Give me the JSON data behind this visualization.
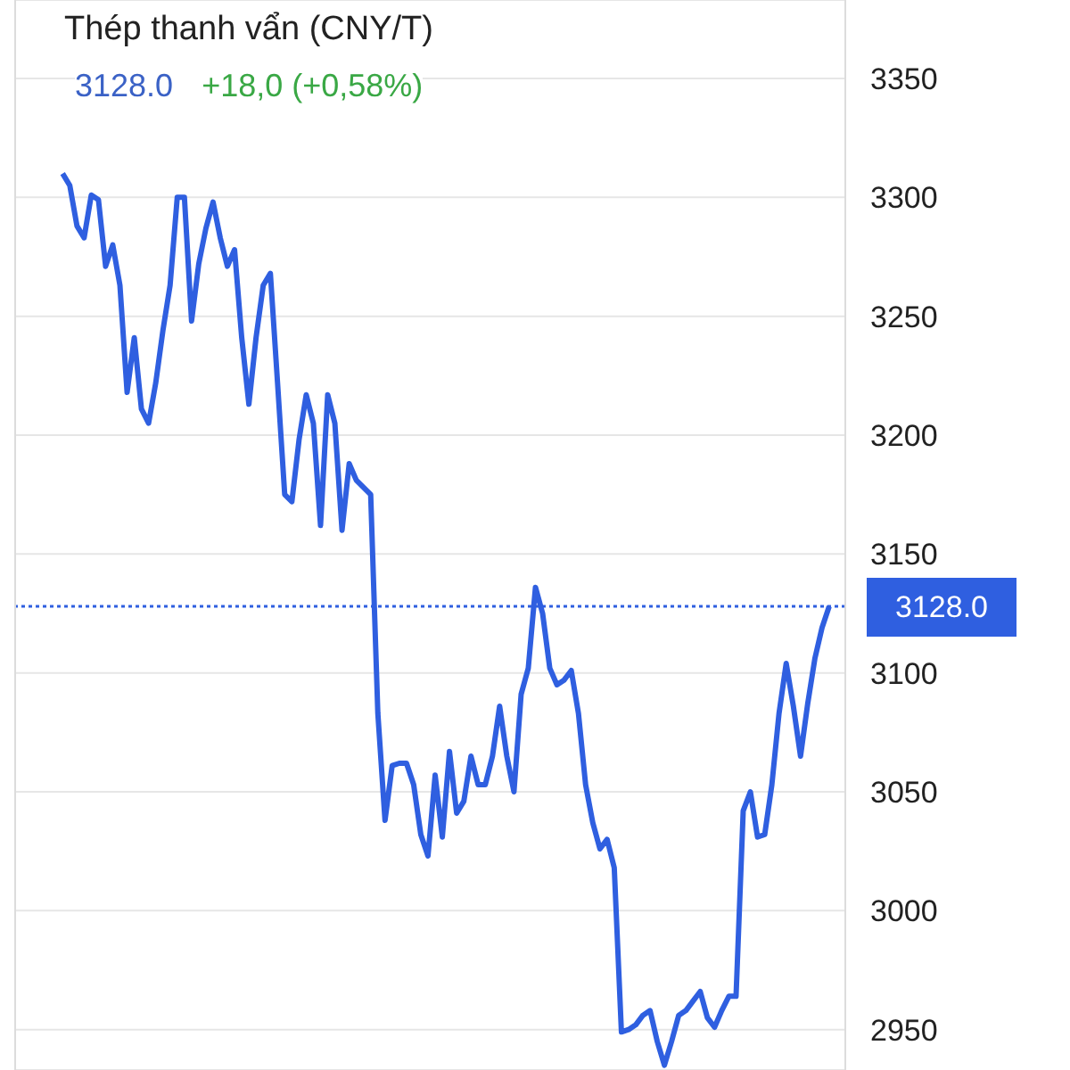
{
  "chart_data": {
    "type": "line",
    "title": "Thép thanh vẩn (CNY/T)",
    "subtitle": "3128.0",
    "annotations": [
      "+18,0 (+0,58%)"
    ],
    "categories": [
      null,
      null,
      null,
      null,
      null,
      null,
      null,
      null,
      null,
      null,
      null,
      null,
      null,
      null,
      null,
      null,
      null,
      null,
      null,
      null,
      null,
      null,
      null,
      null,
      null,
      null,
      null,
      null,
      null,
      null,
      null,
      null,
      null,
      null,
      null,
      null,
      null,
      null,
      null,
      null,
      null,
      null,
      null,
      null,
      null,
      null,
      null,
      null,
      null,
      null,
      null,
      null,
      null,
      null,
      null,
      null,
      null,
      null,
      null,
      null,
      null,
      null,
      null,
      null,
      null,
      null,
      null,
      null,
      null,
      null,
      null,
      null,
      null,
      null,
      null,
      null,
      null,
      null,
      null,
      null,
      null,
      null,
      null,
      null,
      null,
      null,
      null,
      null,
      null,
      null,
      null,
      null,
      null,
      null,
      null,
      null,
      null,
      null,
      null,
      null,
      null,
      null,
      null,
      null,
      null,
      null,
      null,
      null
    ],
    "series": [
      {
        "color": "#2f5fe0",
        "values": [
          3310,
          3305,
          3288,
          3283,
          3301,
          3299,
          3271,
          3280,
          3263,
          3218,
          3241,
          3211,
          3205,
          3222,
          3244,
          3263,
          3300,
          3300,
          3248,
          3272,
          3287,
          3298,
          3283,
          3271,
          3278,
          3241,
          3213,
          3241,
          3263,
          3268,
          3222,
          3175,
          3172,
          3198,
          3217,
          3205,
          3162,
          3217,
          3205,
          3160,
          3188,
          3181,
          3178,
          3175,
          3083,
          3038,
          3061,
          3062,
          3062,
          3053,
          3032,
          3023,
          3057,
          3031,
          3067,
          3041,
          3046,
          3065,
          3053,
          3053,
          3065,
          3086,
          3065,
          3050,
          3091,
          3102,
          3136,
          3125,
          3102,
          3095,
          3097,
          3101,
          3083,
          3053,
          3037,
          3026,
          3030,
          3018,
          2949,
          2950,
          2952,
          2956,
          2958,
          2945,
          2935,
          2945,
          2956,
          2958,
          2962,
          2966,
          2955,
          2951,
          2958,
          2964,
          2964,
          3042,
          3050,
          3031,
          3032,
          3053,
          3083,
          3104,
          3086,
          3065,
          3087,
          3106,
          3119,
          3128
        ]
      }
    ],
    "ylim": [
      2933,
      3383
    ],
    "yticks": [
      2950,
      3000,
      3050,
      3100,
      3150,
      3200,
      3250,
      3300,
      3350
    ],
    "grid": "y",
    "marker": "none",
    "line_style": "solid",
    "ref_lines": [
      {
        "axis": "y",
        "value": 3128,
        "label": "3128.0",
        "color": "#2f5fe0",
        "line_style": "dotted"
      }
    ]
  }
}
